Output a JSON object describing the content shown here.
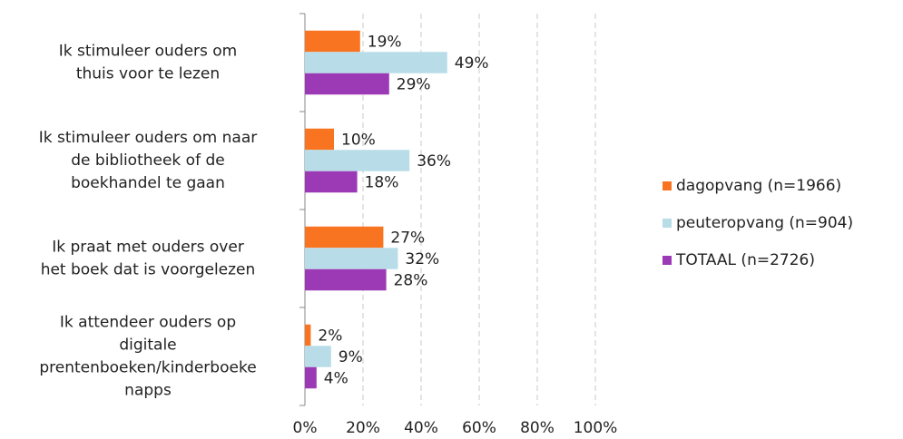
{
  "chart_data": {
    "type": "bar",
    "orientation": "horizontal",
    "categories": [
      "Ik stimuleer ouders om\nthuis voor te lezen",
      "Ik stimuleer ouders om naar\nde bibliotheek of de\nboekhandel te gaan",
      "Ik praat met ouders over\nhet boek dat is voorgelezen",
      "Ik attendeer ouders op\ndigitale\nprentenboeken/kinderboeke\nnapps"
    ],
    "series": [
      {
        "name": "dagopvang (n=1966)",
        "color": "#f97420",
        "values": [
          19,
          10,
          27,
          2
        ],
        "value_labels": [
          "19%",
          "10%",
          "27%",
          "2%"
        ]
      },
      {
        "name": "peuteropvang (n=904)",
        "color": "#b8dde8",
        "values": [
          49,
          36,
          32,
          9
        ],
        "value_labels": [
          "49%",
          "36%",
          "32%",
          "9%"
        ]
      },
      {
        "name": "TOTAAL (n=2726)",
        "color": "#9b3ab4",
        "values": [
          29,
          18,
          28,
          4
        ],
        "value_labels": [
          "29%",
          "18%",
          "28%",
          "4%"
        ]
      }
    ],
    "xlim": [
      0,
      100
    ],
    "xticks": [
      {
        "value": 0,
        "label": "0%"
      },
      {
        "value": 20,
        "label": "20%"
      },
      {
        "value": 40,
        "label": "40%"
      },
      {
        "value": 60,
        "label": "60%"
      },
      {
        "value": 80,
        "label": "80%"
      },
      {
        "value": 100,
        "label": "100%"
      }
    ],
    "grid": true,
    "legend": "right"
  }
}
